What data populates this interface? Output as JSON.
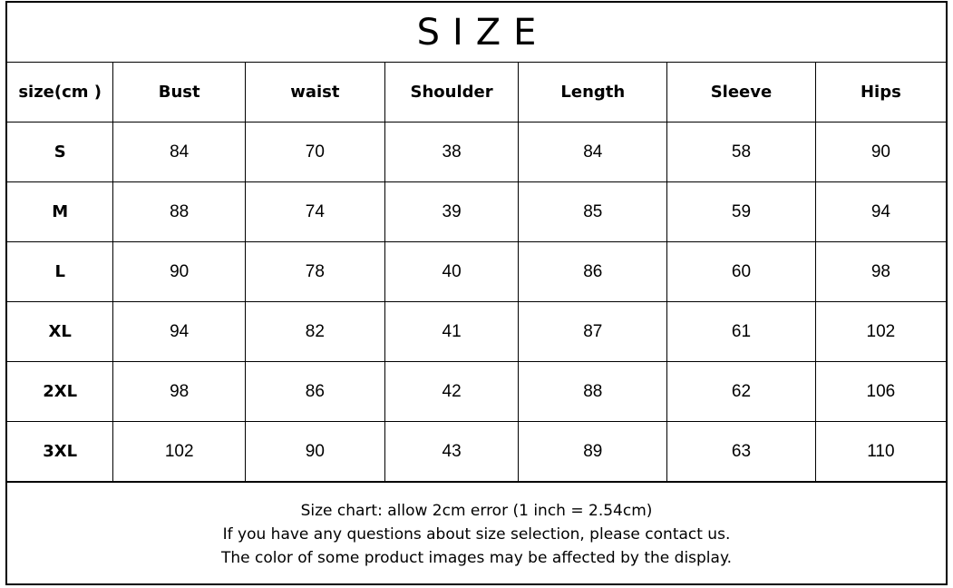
{
  "title": "SIZE",
  "table": {
    "headers": [
      "size(cm )",
      "Bust",
      "waist",
      "Shoulder",
      "Length",
      "Sleeve",
      "Hips"
    ],
    "rows": [
      [
        "S",
        "84",
        "70",
        "38",
        "84",
        "58",
        "90"
      ],
      [
        "M",
        "88",
        "74",
        "39",
        "85",
        "59",
        "94"
      ],
      [
        "L",
        "90",
        "78",
        "40",
        "86",
        "60",
        "98"
      ],
      [
        "XL",
        "94",
        "82",
        "41",
        "87",
        "61",
        "102"
      ],
      [
        "2XL",
        "98",
        "86",
        "42",
        "88",
        "62",
        "106"
      ],
      [
        "3XL",
        "102",
        "90",
        "43",
        "89",
        "63",
        "110"
      ]
    ]
  },
  "notes": [
    "Size chart: allow 2cm error (1 inch = 2.54cm)",
    "If you have any questions about size selection, please contact us.",
    "The color of some product images may be affected by the display."
  ]
}
